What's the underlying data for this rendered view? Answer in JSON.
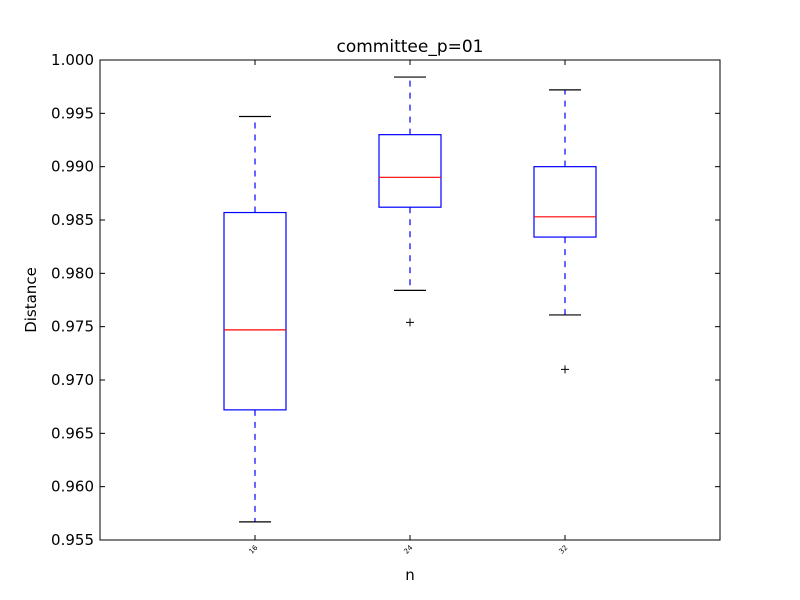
{
  "chart_data": {
    "type": "box",
    "title": "committee_p=01",
    "xlabel": "n",
    "ylabel": "Distance",
    "ylim": [
      0.955,
      1.0
    ],
    "yticks": [
      "0.955",
      "0.960",
      "0.965",
      "0.970",
      "0.975",
      "0.980",
      "0.985",
      "0.990",
      "0.995",
      "1.000"
    ],
    "categories": [
      "16",
      "24",
      "32"
    ],
    "boxes": [
      {
        "category": "16",
        "whisker_low": 0.9567,
        "q1": 0.9672,
        "median": 0.9747,
        "q3": 0.9857,
        "whisker_high": 0.9947,
        "outliers": []
      },
      {
        "category": "24",
        "whisker_low": 0.9784,
        "q1": 0.9862,
        "median": 0.989,
        "q3": 0.993,
        "whisker_high": 0.9984,
        "outliers": [
          0.9754
        ]
      },
      {
        "category": "32",
        "whisker_low": 0.9761,
        "q1": 0.9834,
        "median": 0.9853,
        "q3": 0.99,
        "whisker_high": 0.9972,
        "outliers": [
          0.971
        ]
      }
    ],
    "grid": false,
    "colors": {
      "box": "#0000ff",
      "median": "#ff0000",
      "whisker": "#0000ff",
      "cap": "#000000",
      "flier": "#000000"
    }
  }
}
